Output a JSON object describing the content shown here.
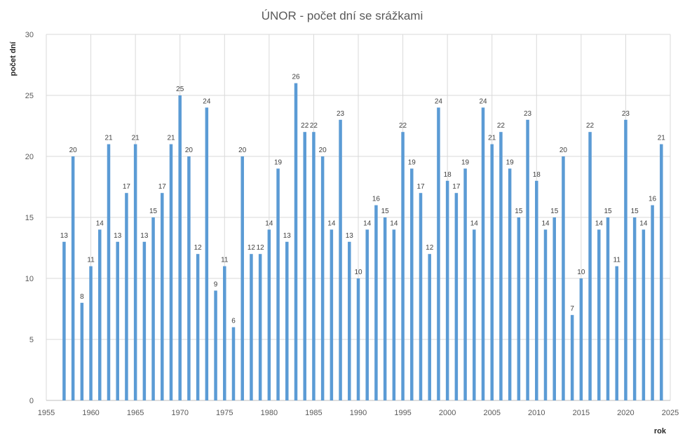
{
  "chart_data": {
    "type": "bar",
    "title": "ÚNOR - počet dní se srážkami",
    "xlabel": "rok",
    "ylabel": "počet dní",
    "xlim": [
      1955,
      2025
    ],
    "ylim": [
      0,
      30
    ],
    "xticks": [
      1955,
      1960,
      1965,
      1970,
      1975,
      1980,
      1985,
      1990,
      1995,
      2000,
      2005,
      2010,
      2015,
      2020,
      2025
    ],
    "yticks": [
      0,
      5,
      10,
      15,
      20,
      25,
      30
    ],
    "grid": true,
    "bar_color": "#5b9bd5",
    "x": [
      1957,
      1958,
      1959,
      1960,
      1961,
      1962,
      1963,
      1964,
      1965,
      1966,
      1967,
      1968,
      1969,
      1970,
      1971,
      1972,
      1973,
      1974,
      1975,
      1976,
      1977,
      1978,
      1979,
      1980,
      1981,
      1982,
      1983,
      1984,
      1985,
      1986,
      1987,
      1988,
      1989,
      1990,
      1991,
      1992,
      1993,
      1994,
      1995,
      1996,
      1997,
      1998,
      1999,
      2000,
      2001,
      2002,
      2003,
      2004,
      2005,
      2006,
      2007,
      2008,
      2009,
      2010,
      2011,
      2012,
      2013,
      2014,
      2015,
      2016,
      2017,
      2018,
      2019,
      2020,
      2021,
      2022,
      2023,
      2024
    ],
    "values": [
      13,
      20,
      8,
      11,
      14,
      21,
      13,
      17,
      21,
      13,
      15,
      17,
      21,
      25,
      20,
      12,
      24,
      9,
      11,
      6,
      20,
      12,
      12,
      14,
      19,
      13,
      26,
      22,
      22,
      20,
      14,
      23,
      13,
      10,
      14,
      16,
      15,
      14,
      22,
      19,
      17,
      12,
      24,
      18,
      17,
      19,
      14,
      24,
      21,
      22,
      19,
      15,
      23,
      18,
      14,
      15,
      20,
      7,
      10,
      22,
      14,
      15,
      11,
      23,
      15,
      14,
      16,
      21
    ]
  }
}
